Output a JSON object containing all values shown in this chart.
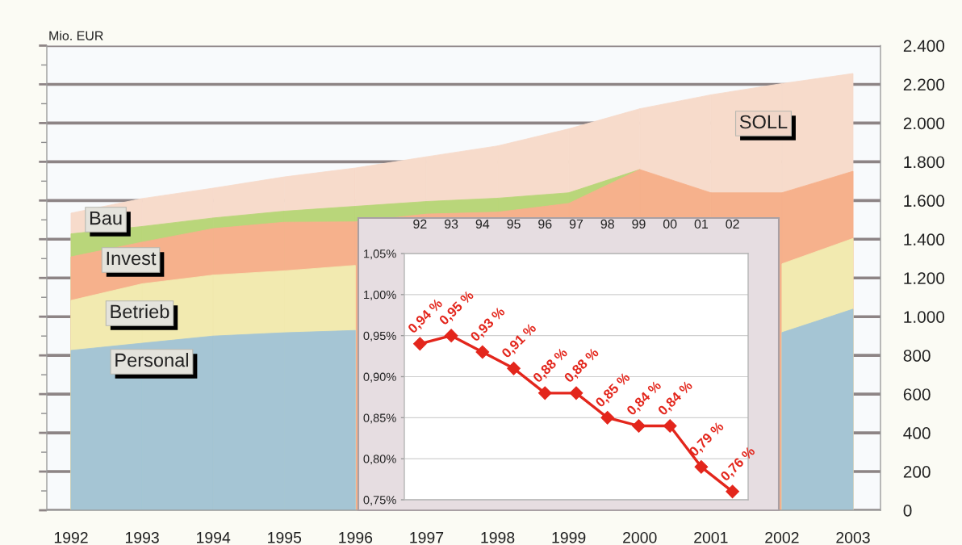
{
  "chart_data": [
    {
      "type": "area",
      "ylabel": "Mio. EUR",
      "categories": [
        "1992",
        "1993",
        "1994",
        "1995",
        "1996",
        "1997",
        "1998",
        "1999",
        "2000",
        "2001",
        "2002",
        "2003"
      ],
      "series": [
        {
          "name": "SOLL",
          "color": "#f7dbcb",
          "values": [
            1535,
            1610,
            1664,
            1722,
            1768,
            1826,
            1882,
            1970,
            2074,
            2146,
            2204,
            2256
          ]
        },
        {
          "name": "Bau",
          "color": "#b9d67a",
          "values": [
            1428,
            1466,
            1510,
            1545,
            1570,
            1595,
            1612,
            1640,
            1760,
            null,
            null,
            null
          ]
        },
        {
          "name": "Invest",
          "color": "#f6b18c",
          "values": [
            1309,
            1385,
            1455,
            1488,
            1490,
            1530,
            1540,
            1585,
            1760,
            1640,
            1640,
            1751
          ]
        },
        {
          "name": "Betrieb",
          "color": "#f2eab0",
          "values": [
            1084,
            1170,
            1215,
            1237,
            1265,
            null,
            null,
            null,
            null,
            null,
            1273,
            1404
          ]
        },
        {
          "name": "Personal",
          "color": "#a5c5d4",
          "values": [
            826,
            863,
            900,
            917,
            929,
            null,
            null,
            null,
            null,
            null,
            918,
            1039
          ]
        }
      ],
      "ylim": [
        0,
        2400
      ],
      "yticks": [
        0,
        200,
        400,
        600,
        800,
        {
          "value": 1000,
          "label": "1.000"
        },
        {
          "value": 1200,
          "label": "1.200"
        },
        {
          "value": 1400,
          "label": "1.400"
        },
        {
          "value": 1600,
          "label": "1.600"
        },
        {
          "value": 1800,
          "label": "1.800"
        },
        {
          "value": 2000,
          "label": "2.000"
        },
        {
          "value": 2200,
          "label": "2.200"
        },
        {
          "value": 2400,
          "label": "2.400"
        }
      ],
      "grid": true
    },
    {
      "type": "line",
      "categories": [
        "92",
        "93",
        "94",
        "95",
        "96",
        "97",
        "98",
        "99",
        "00",
        "01",
        "02"
      ],
      "series": [
        {
          "color": "#e3261c",
          "values": [
            0.94,
            0.95,
            0.93,
            0.91,
            0.88,
            0.88,
            0.85,
            0.84,
            0.84,
            0.79,
            0.76
          ],
          "value_labels": [
            "0,94 %",
            "0,95 %",
            "0,93 %",
            "0,91 %",
            "0,88 %",
            "0,88 %",
            "0,85 %",
            "0,84 %",
            "0,84 %",
            "0,79 %",
            "0,76 %"
          ]
        }
      ],
      "ylim": [
        0.75,
        1.05
      ],
      "yticks": [
        {
          "value": 0.75,
          "label": "0,75%"
        },
        {
          "value": 0.8,
          "label": "0,80%"
        },
        {
          "value": 0.85,
          "label": "0,85%"
        },
        {
          "value": 0.9,
          "label": "0,90%"
        },
        {
          "value": 0.95,
          "label": "0,95%"
        },
        {
          "value": 1.0,
          "label": "1,00%"
        },
        {
          "value": 1.05,
          "label": "1,05%"
        }
      ],
      "grid": true,
      "marker": "diamond",
      "line_style": "solid"
    }
  ]
}
